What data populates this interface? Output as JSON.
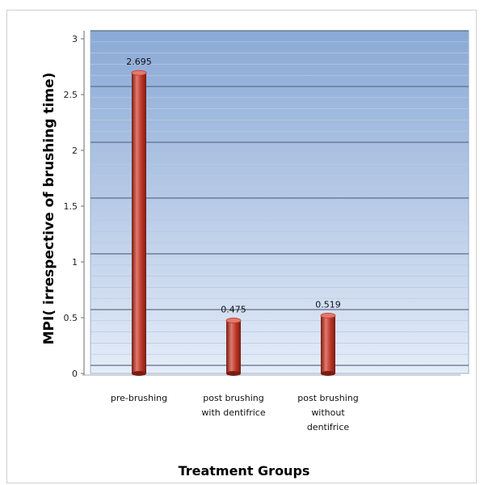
{
  "chart_data": {
    "type": "bar",
    "categories": [
      [
        "pre-brushing"
      ],
      [
        "post brushing",
        "with dentifrice"
      ],
      [
        "post brushing",
        "without",
        "dentifrice"
      ]
    ],
    "values": [
      2.695,
      0.475,
      0.519
    ],
    "data_labels": [
      "2.695",
      "0.475",
      "0.519"
    ],
    "title": "",
    "xlabel": "Treatment Groups",
    "ylabel": "MPI( irrespective of brushing time)",
    "ylim": [
      0,
      3
    ],
    "yticks": [
      "0",
      "0.5",
      "1",
      "1.5",
      "2",
      "2.5",
      "3"
    ],
    "grid": true,
    "colors": {
      "bar_main": "#c0392b",
      "bar_dark": "#7a1c12",
      "bar_light": "#e07a6e",
      "plot_top": "#8aa9d6",
      "plot_bottom": "#e4ecf8",
      "gridline": "#5b6f8a"
    }
  }
}
